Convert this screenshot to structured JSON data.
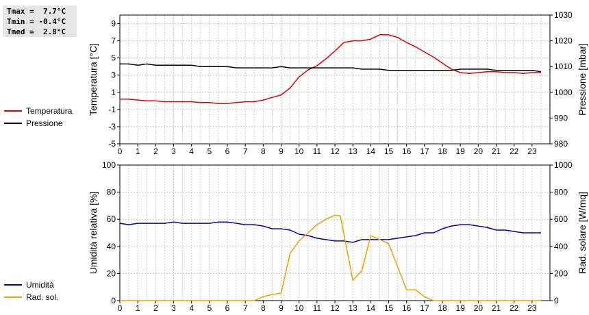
{
  "stats": {
    "tmax": "Tmax =  7.7°C",
    "tmin": "Tmin = -0.4°C",
    "tmed": "Tmed =  2.8°C"
  },
  "chart_data": [
    {
      "type": "line",
      "x_ticks": [
        0,
        1,
        2,
        3,
        4,
        5,
        6,
        7,
        8,
        9,
        10,
        11,
        12,
        13,
        14,
        15,
        16,
        17,
        18,
        19,
        20,
        21,
        22,
        23
      ],
      "xlim": [
        0,
        24
      ],
      "ylabel": "Temperatura [°C]",
      "ylim": [
        -5,
        10
      ],
      "yticks": [
        -5,
        -3,
        -1,
        1,
        3,
        5,
        7,
        9
      ],
      "y2label": "Pressione [mbar]",
      "y2lim": [
        980,
        1030
      ],
      "y2ticks": [
        980,
        990,
        1000,
        1010,
        1020,
        1030
      ],
      "grid": true,
      "legend_position": "left",
      "series": [
        {
          "name": "Temperatura",
          "color": "#e00000",
          "axis": "left",
          "points": [
            [
              0,
              0.2
            ],
            [
              0.5,
              0.2
            ],
            [
              1,
              0.1
            ],
            [
              1.5,
              0
            ],
            [
              2,
              0
            ],
            [
              2.5,
              -0.1
            ],
            [
              3,
              -0.1
            ],
            [
              3.5,
              -0.1
            ],
            [
              4,
              -0.1
            ],
            [
              4.5,
              -0.2
            ],
            [
              5,
              -0.2
            ],
            [
              5.5,
              -0.3
            ],
            [
              6,
              -0.3
            ],
            [
              6.5,
              -0.2
            ],
            [
              7,
              -0.1
            ],
            [
              7.5,
              -0.1
            ],
            [
              8,
              0.1
            ],
            [
              8.5,
              0.4
            ],
            [
              9,
              0.7
            ],
            [
              9.5,
              1.5
            ],
            [
              10,
              2.8
            ],
            [
              10.5,
              3.6
            ],
            [
              11,
              4.1
            ],
            [
              11.5,
              4.9
            ],
            [
              12,
              5.8
            ],
            [
              12.5,
              6.8
            ],
            [
              13,
              7.0
            ],
            [
              13.5,
              7.0
            ],
            [
              14,
              7.2
            ],
            [
              14.5,
              7.7
            ],
            [
              15,
              7.7
            ],
            [
              15.5,
              7.4
            ],
            [
              16,
              6.8
            ],
            [
              16.5,
              6.3
            ],
            [
              17,
              5.7
            ],
            [
              17.5,
              5.1
            ],
            [
              18,
              4.4
            ],
            [
              18.5,
              3.7
            ],
            [
              19,
              3.3
            ],
            [
              19.5,
              3.2
            ],
            [
              20,
              3.3
            ],
            [
              20.5,
              3.4
            ],
            [
              21,
              3.4
            ],
            [
              21.5,
              3.3
            ],
            [
              22,
              3.3
            ],
            [
              22.5,
              3.2
            ],
            [
              23,
              3.3
            ],
            [
              23.5,
              3.3
            ]
          ]
        },
        {
          "name": "Pressione",
          "color": "#000000",
          "axis": "right",
          "points": [
            [
              0,
              1011
            ],
            [
              0.5,
              1011
            ],
            [
              1,
              1010.5
            ],
            [
              1.5,
              1011
            ],
            [
              2,
              1010.5
            ],
            [
              2.5,
              1010.5
            ],
            [
              3,
              1010.5
            ],
            [
              3.5,
              1010.5
            ],
            [
              4,
              1010.5
            ],
            [
              4.5,
              1010
            ],
            [
              5,
              1010
            ],
            [
              5.5,
              1010
            ],
            [
              6,
              1010
            ],
            [
              6.5,
              1009.5
            ],
            [
              7,
              1009.5
            ],
            [
              7.5,
              1009.5
            ],
            [
              8,
              1009.5
            ],
            [
              8.5,
              1009.5
            ],
            [
              9,
              1010
            ],
            [
              9.5,
              1009.5
            ],
            [
              10,
              1009.5
            ],
            [
              10.5,
              1009.5
            ],
            [
              11,
              1009.5
            ],
            [
              11.5,
              1009.5
            ],
            [
              12,
              1009.5
            ],
            [
              12.5,
              1009.5
            ],
            [
              13,
              1009.5
            ],
            [
              13.5,
              1009
            ],
            [
              14,
              1009
            ],
            [
              14.5,
              1009
            ],
            [
              15,
              1008.5
            ],
            [
              15.5,
              1008.5
            ],
            [
              16,
              1008.5
            ],
            [
              16.5,
              1008.5
            ],
            [
              17,
              1008.5
            ],
            [
              17.5,
              1008.5
            ],
            [
              18,
              1008.5
            ],
            [
              18.5,
              1008.5
            ],
            [
              19,
              1009
            ],
            [
              19.5,
              1009
            ],
            [
              20,
              1009
            ],
            [
              20.5,
              1009
            ],
            [
              21,
              1008.5
            ],
            [
              21.5,
              1008.5
            ],
            [
              22,
              1008.5
            ],
            [
              22.5,
              1008.5
            ],
            [
              23,
              1008.5
            ],
            [
              23.5,
              1008
            ]
          ]
        }
      ]
    },
    {
      "type": "line",
      "x_ticks": [
        0,
        1,
        2,
        3,
        4,
        5,
        6,
        7,
        8,
        9,
        10,
        11,
        12,
        13,
        14,
        15,
        16,
        17,
        18,
        19,
        20,
        21,
        22,
        23
      ],
      "xlim": [
        0,
        24
      ],
      "ylabel": "Umidità relativa [%]",
      "ylim": [
        0,
        100
      ],
      "yticks": [
        0,
        20,
        40,
        60,
        80,
        100
      ],
      "y2label": "Rad. solare [W/mq]",
      "y2lim": [
        0,
        1000
      ],
      "y2ticks": [
        0,
        200,
        400,
        600,
        800,
        1000
      ],
      "grid": true,
      "legend_position": "left",
      "series": [
        {
          "name": "Umidità",
          "color": "#0000b4",
          "axis": "left",
          "points": [
            [
              0,
              57
            ],
            [
              0.5,
              56
            ],
            [
              1,
              57
            ],
            [
              1.5,
              57
            ],
            [
              2,
              57
            ],
            [
              2.5,
              57
            ],
            [
              3,
              58
            ],
            [
              3.5,
              57
            ],
            [
              4,
              57
            ],
            [
              4.5,
              57
            ],
            [
              5,
              57
            ],
            [
              5.5,
              58
            ],
            [
              6,
              58
            ],
            [
              6.5,
              57
            ],
            [
              7,
              56
            ],
            [
              7.5,
              56
            ],
            [
              8,
              55
            ],
            [
              8.5,
              53
            ],
            [
              9,
              53
            ],
            [
              9.5,
              52
            ],
            [
              10,
              49
            ],
            [
              10.5,
              48
            ],
            [
              11,
              46
            ],
            [
              11.5,
              45
            ],
            [
              12,
              44
            ],
            [
              12.5,
              44
            ],
            [
              13,
              43
            ],
            [
              13.5,
              45
            ],
            [
              14,
              45
            ],
            [
              14.5,
              45
            ],
            [
              15,
              45
            ],
            [
              15.5,
              46
            ],
            [
              16,
              47
            ],
            [
              16.5,
              48
            ],
            [
              17,
              50
            ],
            [
              17.5,
              50
            ],
            [
              18,
              53
            ],
            [
              18.5,
              55
            ],
            [
              19,
              56
            ],
            [
              19.5,
              56
            ],
            [
              20,
              55
            ],
            [
              20.5,
              54
            ],
            [
              21,
              52
            ],
            [
              21.5,
              52
            ],
            [
              22,
              51
            ],
            [
              22.5,
              50
            ],
            [
              23,
              50
            ],
            [
              23.5,
              50
            ]
          ]
        },
        {
          "name": "Rad. sol.",
          "color": "#f0a000",
          "axis": "right",
          "points": [
            [
              0,
              0
            ],
            [
              7.5,
              0
            ],
            [
              8,
              30
            ],
            [
              8.5,
              45
            ],
            [
              9,
              55
            ],
            [
              9.5,
              350
            ],
            [
              10,
              440
            ],
            [
              10.5,
              500
            ],
            [
              11,
              560
            ],
            [
              11.5,
              600
            ],
            [
              12,
              630
            ],
            [
              12.3,
              625
            ],
            [
              13,
              150
            ],
            [
              13.5,
              220
            ],
            [
              14,
              480
            ],
            [
              14.5,
              450
            ],
            [
              15,
              420
            ],
            [
              15.5,
              250
            ],
            [
              16,
              80
            ],
            [
              16.5,
              80
            ],
            [
              17,
              30
            ],
            [
              17.5,
              0
            ],
            [
              23.5,
              0
            ]
          ]
        }
      ]
    }
  ]
}
